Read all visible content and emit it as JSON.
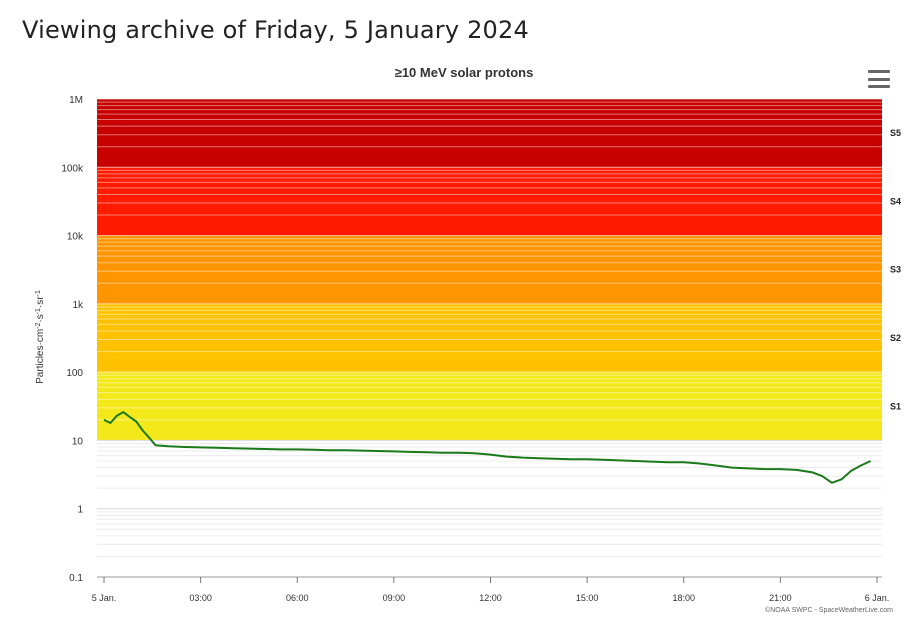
{
  "page": {
    "title": "Viewing archive of Friday, 5 January 2024"
  },
  "menu": {
    "icon": "hamburger-menu-icon"
  },
  "chart_data": {
    "type": "line",
    "title": "≥10 MeV solar protons",
    "ylabel": "Particles cm^-2 s^-1 sr^-1",
    "ylabel_parts": [
      {
        "t": "Particles·cm",
        "sup": false
      },
      {
        "t": "-2",
        "sup": true
      },
      {
        "t": "·s",
        "sup": false
      },
      {
        "t": "-1",
        "sup": true
      },
      {
        "t": "·sr",
        "sup": false
      },
      {
        "t": "-1",
        "sup": true
      }
    ],
    "y_scale": "log",
    "ylim": [
      0.1,
      1000000
    ],
    "y_ticks": [
      {
        "value": 0.1,
        "label": "0.1"
      },
      {
        "value": 1,
        "label": "1"
      },
      {
        "value": 10,
        "label": "10"
      },
      {
        "value": 100,
        "label": "100"
      },
      {
        "value": 1000,
        "label": "1k"
      },
      {
        "value": 10000,
        "label": "10k"
      },
      {
        "value": 100000,
        "label": "100k"
      },
      {
        "value": 1000000,
        "label": "1M"
      }
    ],
    "x_unit": "hours since 5 Jan 00:00 UTC",
    "xlim": [
      0,
      24
    ],
    "x_ticks": [
      {
        "value": 0,
        "label": "5 Jan."
      },
      {
        "value": 3,
        "label": "03:00"
      },
      {
        "value": 6,
        "label": "06:00"
      },
      {
        "value": 9,
        "label": "09:00"
      },
      {
        "value": 12,
        "label": "12:00"
      },
      {
        "value": 15,
        "label": "15:00"
      },
      {
        "value": 18,
        "label": "18:00"
      },
      {
        "value": 21,
        "label": "21:00"
      },
      {
        "value": 24,
        "label": "6 Jan."
      }
    ],
    "bands": [
      {
        "label": "S1",
        "from": 10,
        "to": 100,
        "color": "#f3e81a"
      },
      {
        "label": "S2",
        "from": 100,
        "to": 1000,
        "color": "#ffc200"
      },
      {
        "label": "S3",
        "from": 1000,
        "to": 10000,
        "color": "#ff9500"
      },
      {
        "label": "S4",
        "from": 10000,
        "to": 100000,
        "color": "#ff1a00"
      },
      {
        "label": "S5",
        "from": 100000,
        "to": 1000000,
        "color": "#c80000"
      }
    ],
    "series": [
      {
        "color": "#1a7a1a",
        "x": [
          0.0,
          0.2,
          0.4,
          0.6,
          0.8,
          1.0,
          1.2,
          1.4,
          1.6,
          2.0,
          2.5,
          3.0,
          3.5,
          4.0,
          4.5,
          5.0,
          5.5,
          6.0,
          6.5,
          7.0,
          7.5,
          8.0,
          8.5,
          9.0,
          9.5,
          10.0,
          10.5,
          11.0,
          11.5,
          12.0,
          12.5,
          13.0,
          13.5,
          14.0,
          14.5,
          15.0,
          15.5,
          16.0,
          16.5,
          17.0,
          17.5,
          18.0,
          18.5,
          19.0,
          19.5,
          20.0,
          20.5,
          21.0,
          21.5,
          22.0,
          22.3,
          22.6,
          22.9,
          23.2,
          23.5,
          23.8
        ],
        "y": [
          20,
          18,
          23,
          26,
          22,
          19,
          14,
          11,
          8.5,
          8.2,
          8.0,
          7.9,
          7.8,
          7.7,
          7.6,
          7.5,
          7.4,
          7.4,
          7.3,
          7.2,
          7.2,
          7.1,
          7.0,
          6.9,
          6.8,
          6.7,
          6.6,
          6.6,
          6.5,
          6.2,
          5.8,
          5.6,
          5.5,
          5.4,
          5.3,
          5.3,
          5.2,
          5.1,
          5.0,
          4.9,
          4.8,
          4.8,
          4.6,
          4.3,
          4.0,
          3.9,
          3.8,
          3.8,
          3.7,
          3.4,
          3.0,
          2.4,
          2.7,
          3.6,
          4.3,
          5.0
        ]
      }
    ],
    "credit": "©NOAA SWPC - SpaceWeatherLive.com",
    "grid": true,
    "legend": "none"
  }
}
